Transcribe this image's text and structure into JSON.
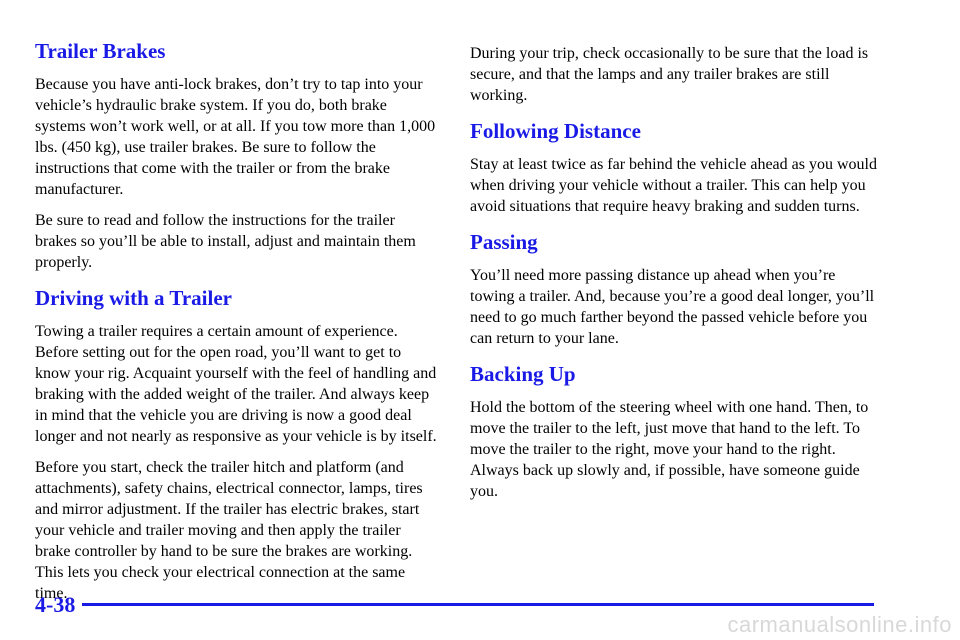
{
  "left_column": {
    "sections": [
      {
        "heading": "Trailer Brakes",
        "paragraphs": [
          "Because you have anti-lock brakes, don’t try to tap into your vehicle’s hydraulic brake system. If you do, both brake systems won’t work well, or at all. If you tow more than 1,000 lbs. (450 kg), use trailer brakes. Be sure to follow the instructions that come with the trailer or from the brake manufacturer.",
          "Be sure to read and follow the instructions for the trailer brakes so you’ll be able to install, adjust and maintain them properly."
        ]
      },
      {
        "heading": "Driving with a Trailer",
        "paragraphs": [
          "Towing a trailer requires a certain amount of experience. Before setting out for the open road, you’ll want to get to know your rig. Acquaint yourself with the feel of handling and braking with the added weight of the trailer. And always keep in mind that the vehicle you are driving is now a good deal longer and not nearly as responsive as your vehicle is by itself.",
          "Before you start, check the trailer hitch and platform (and attachments), safety chains, electrical connector, lamps, tires and mirror adjustment. If the trailer has electric brakes, start your vehicle and trailer moving and then apply the trailer brake controller by hand to be sure the brakes are working. This lets you check your electrical connection at the same time."
        ]
      }
    ]
  },
  "right_column": {
    "intro": "During your trip, check occasionally to be sure that the load is secure, and that the lamps and any trailer brakes are still working.",
    "sections": [
      {
        "heading": "Following Distance",
        "paragraphs": [
          "Stay at least twice as far behind the vehicle ahead as you would when driving your vehicle without a trailer. This can help you avoid situations that require heavy braking and sudden turns."
        ]
      },
      {
        "heading": "Passing",
        "paragraphs": [
          "You’ll need more passing distance up ahead when you’re towing a trailer. And, because you’re a good deal longer, you’ll need to go much farther beyond the passed vehicle before you can return to your lane."
        ]
      },
      {
        "heading": "Backing Up",
        "paragraphs": [
          "Hold the bottom of the steering wheel with one hand. Then, to move the trailer to the left, just move that hand to the left. To move the trailer to the right, move your hand to the right. Always back up slowly and, if possible, have someone guide you."
        ]
      }
    ]
  },
  "footer": {
    "page_number": "4-38",
    "watermark": "carmanualsonline.info"
  },
  "colors": {
    "heading": "#1a1ae6",
    "rule": "#1a1ae6",
    "watermark": "#d8d8d8"
  }
}
